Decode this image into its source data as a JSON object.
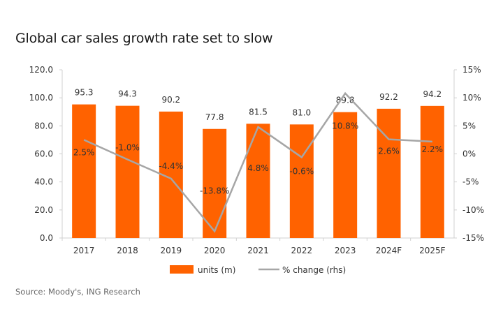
{
  "chart_data": {
    "type": "bar+line",
    "title": "Global car sales growth rate set to slow",
    "source": "Source: Moody's, ING Research",
    "categories": [
      "2017",
      "2018",
      "2019",
      "2020",
      "2021",
      "2022",
      "2023",
      "2024F",
      "2025F"
    ],
    "series": [
      {
        "name": "units (m)",
        "type": "bar",
        "axis": "left",
        "color": "#FF6200",
        "values": [
          95.3,
          94.3,
          90.2,
          77.8,
          81.5,
          81.0,
          89.8,
          92.2,
          94.2
        ],
        "labels": [
          "95.3",
          "94.3",
          "90.2",
          "77.8",
          "81.5",
          "81.0",
          "89.8",
          "92.2",
          "94.2"
        ]
      },
      {
        "name": "% change (rhs)",
        "type": "line",
        "axis": "right",
        "color": "#A6A6A6",
        "values": [
          2.5,
          -1.0,
          -4.4,
          -13.8,
          4.8,
          -0.6,
          10.8,
          2.6,
          2.2
        ],
        "labels": [
          "2.5%",
          "-1.0%",
          "-4.4%",
          "-13.8%",
          "4.8%",
          "-0.6%",
          "10.8%",
          "2.6%",
          "2.2%"
        ]
      }
    ],
    "left_axis": {
      "ylim": [
        0,
        120
      ],
      "ticks": [
        "0.0",
        "20.0",
        "40.0",
        "60.0",
        "80.0",
        "100.0",
        "120.0"
      ]
    },
    "right_axis": {
      "ylim": [
        -15,
        15
      ],
      "ticks": [
        "-15%",
        "-10%",
        "-5%",
        "0%",
        "5%",
        "10%",
        "15%"
      ]
    },
    "grid": false,
    "legend": "bottom"
  }
}
